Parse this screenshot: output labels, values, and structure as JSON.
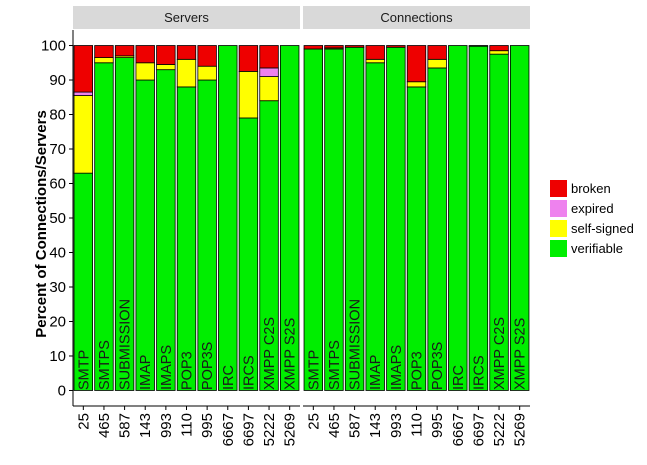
{
  "chart_data": {
    "type": "bar",
    "stacked": true,
    "ylabel": "Percent of Connections/Servers",
    "xlabel": "",
    "ylim": [
      0,
      100
    ],
    "yticks": [
      0,
      10,
      20,
      30,
      40,
      50,
      60,
      70,
      80,
      90,
      100
    ],
    "legend_position": "right",
    "facets": [
      "Servers",
      "Connections"
    ],
    "categories": [
      "25",
      "465",
      "587",
      "143",
      "993",
      "110",
      "995",
      "6667",
      "6697",
      "5222",
      "5269"
    ],
    "protocols": [
      "SMTP",
      "SMTPS",
      "SUBMISSION",
      "IMAP",
      "IMAPS",
      "POP3",
      "POP3S",
      "IRC",
      "IRCS",
      "XMPP C2S",
      "XMPP S2S"
    ],
    "series": [
      {
        "name": "verifiable",
        "color": "#00ee00"
      },
      {
        "name": "self-signed",
        "color": "#ffff00"
      },
      {
        "name": "expired",
        "color": "#ee82ee"
      },
      {
        "name": "broken",
        "color": "#ee0000"
      }
    ],
    "legend_order": [
      "broken",
      "expired",
      "self-signed",
      "verifiable"
    ],
    "panels": [
      {
        "name": "Servers",
        "values": {
          "verifiable": [
            63,
            95,
            96.5,
            90,
            93,
            88,
            90,
            100,
            79,
            84,
            100
          ],
          "self-signed": [
            22.5,
            1.5,
            0.5,
            5,
            1.5,
            8,
            4,
            0,
            13.5,
            7,
            0
          ],
          "expired": [
            1,
            0,
            0,
            0,
            0,
            0,
            0,
            0,
            0,
            2.5,
            0
          ],
          "broken": [
            13.5,
            3.5,
            3,
            5,
            5.5,
            4,
            6,
            0,
            7.5,
            6.5,
            0
          ]
        }
      },
      {
        "name": "Connections",
        "values": {
          "verifiable": [
            99,
            99,
            99.5,
            95,
            99.5,
            88,
            93.5,
            100,
            99.8,
            97.5,
            100
          ],
          "self-signed": [
            0,
            0.3,
            0,
            1,
            0,
            1.5,
            2.5,
            0,
            0,
            1,
            0
          ],
          "expired": [
            0,
            0,
            0,
            0,
            0,
            0,
            0,
            0,
            0,
            0,
            0
          ],
          "broken": [
            1,
            0.7,
            0.5,
            4,
            0.5,
            10.5,
            4,
            0,
            0.2,
            1.5,
            0
          ]
        }
      }
    ]
  }
}
